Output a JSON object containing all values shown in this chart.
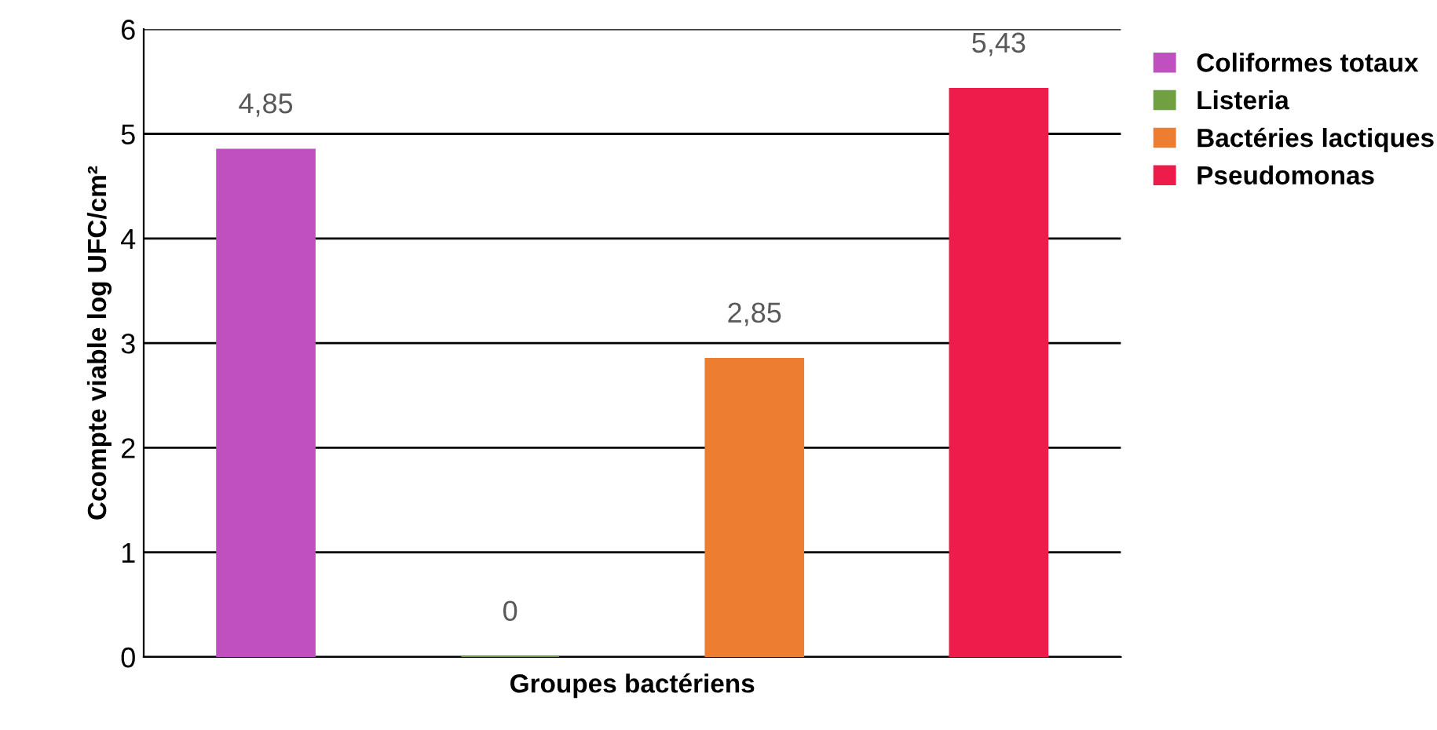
{
  "chart_data": {
    "type": "bar",
    "xlabel": "Groupes bactériens",
    "ylabel": "Ccompte viable log UFC/cm²",
    "categories": [
      null,
      null,
      null,
      null
    ],
    "series": [
      {
        "name": "Coliformes totaux",
        "color": "#c050c0",
        "values": [
          4.85,
          null,
          null,
          null
        ],
        "value_labels": [
          "4,85",
          null,
          null,
          null
        ]
      },
      {
        "name": "Listeria",
        "color": "#70a040",
        "values": [
          null,
          0,
          null,
          null
        ],
        "value_labels": [
          null,
          "0",
          null,
          null
        ]
      },
      {
        "name": "Bactéries lactiques",
        "color": "#ed7d31",
        "values": [
          null,
          null,
          2.85,
          null
        ],
        "value_labels": [
          null,
          null,
          "2,85",
          null
        ]
      },
      {
        "name": "Pseudomonas",
        "color": "#ee1c4a",
        "values": [
          null,
          null,
          null,
          5.43
        ],
        "value_labels": [
          null,
          null,
          null,
          "5,43"
        ]
      }
    ],
    "ylim": [
      0,
      6
    ],
    "yticks": [
      0,
      1,
      2,
      3,
      4,
      5,
      6
    ],
    "grid": "y",
    "legend": "top right"
  }
}
